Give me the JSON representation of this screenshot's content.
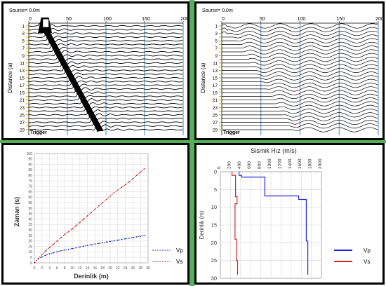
{
  "seismo_left": {
    "source_label": "Source= 0.0m",
    "trigger_label": "Trigger",
    "ylabel": "Distance (a)",
    "x_ticks": [
      "0",
      "50",
      "100",
      "150",
      "200"
    ],
    "y_ticks": [
      "1",
      "3",
      "5",
      "7",
      "9",
      "11",
      "13",
      "15",
      "17",
      "19",
      "21",
      "23",
      "25",
      "27",
      "29"
    ]
  },
  "seismo_right": {
    "source_label": "Source= 0.0m",
    "trigger_label": "Trigger",
    "ylabel": "Distance (a)",
    "x_ticks": [
      "0",
      "50",
      "100",
      "150",
      "200"
    ],
    "y_ticks": [
      "1",
      "3",
      "5",
      "7",
      "9",
      "11",
      "13",
      "15",
      "17",
      "19",
      "21",
      "23",
      "25",
      "27",
      "29"
    ]
  },
  "chart_data": [
    {
      "type": "line",
      "title": "",
      "xlabel": "Derinlik (m)",
      "ylabel": "Zaman (s)",
      "xlim": [
        0,
        30
      ],
      "ylim": [
        0,
        100
      ],
      "x_ticks": [
        "0",
        "2",
        "4",
        "6",
        "8",
        "10",
        "12",
        "14",
        "16",
        "18",
        "20",
        "22",
        "24",
        "26",
        "28",
        "30"
      ],
      "y_ticks": [
        "0",
        "5",
        "10",
        "15",
        "20",
        "25",
        "30",
        "35",
        "40",
        "45",
        "50",
        "55",
        "60",
        "65",
        "70",
        "75",
        "80",
        "85",
        "90",
        "95",
        "100"
      ],
      "grid": true,
      "legend": "right",
      "x": [
        0,
        1,
        2,
        3,
        4,
        5,
        6,
        7,
        8,
        9,
        10,
        11,
        12,
        13,
        14,
        15,
        16,
        17,
        18,
        19,
        20,
        21,
        22,
        23,
        24,
        25,
        26,
        27,
        28,
        29
      ],
      "series": [
        {
          "name": "Vp",
          "color": "#2233bb",
          "values": [
            0,
            3.5,
            5.5,
            7,
            8.2,
            9.2,
            10.2,
            11,
            11.7,
            12.4,
            13.1,
            13.8,
            14.5,
            15.2,
            15.9,
            16.6,
            17.2,
            17.8,
            18.4,
            19,
            19.6,
            20.2,
            20.8,
            21.4,
            22,
            22.6,
            23.2,
            23.8,
            24.4,
            25
          ]
        },
        {
          "name": "Vs",
          "color": "#cc2222",
          "values": [
            0,
            4,
            7.5,
            11,
            14,
            17,
            20,
            23,
            26,
            28.5,
            31,
            34,
            37,
            40,
            43,
            46,
            49,
            52,
            55,
            58,
            61,
            64,
            66.5,
            69,
            71.5,
            74,
            77,
            80,
            83,
            86
          ]
        }
      ]
    },
    {
      "type": "line",
      "title": "Sismik Hız (m/s)",
      "xlabel": "",
      "ylabel": "Derinlik (m)",
      "xlim": [
        0,
        2000
      ],
      "ylim": [
        0,
        30
      ],
      "y_inverted": true,
      "x_ticks": [
        "0",
        "200",
        "400",
        "600",
        "800",
        "1000",
        "1200",
        "1400",
        "1600",
        "1800",
        "2000"
      ],
      "y_ticks": [
        "0",
        "5",
        "10",
        "15",
        "20",
        "25",
        "30"
      ],
      "grid": true,
      "legend": "right",
      "series": [
        {
          "name": "Vp",
          "color": "#2222dd",
          "points": [
            [
              370,
              0
            ],
            [
              370,
              1
            ],
            [
              420,
              1
            ],
            [
              420,
              1.5
            ],
            [
              880,
              1.5
            ],
            [
              880,
              6.8
            ],
            [
              1550,
              6.8
            ],
            [
              1550,
              7.8
            ],
            [
              1700,
              7.8
            ],
            [
              1700,
              19.5
            ],
            [
              1730,
              19.5
            ],
            [
              1730,
              29
            ]
          ]
        },
        {
          "name": "Vs",
          "color": "#dd2222",
          "points": [
            [
              230,
              0
            ],
            [
              230,
              1
            ],
            [
              300,
              1
            ],
            [
              300,
              7
            ],
            [
              330,
              7
            ],
            [
              330,
              9
            ],
            [
              290,
              9
            ],
            [
              290,
              19
            ],
            [
              320,
              19
            ],
            [
              320,
              25
            ],
            [
              340,
              25
            ],
            [
              340,
              29
            ]
          ]
        }
      ]
    }
  ]
}
